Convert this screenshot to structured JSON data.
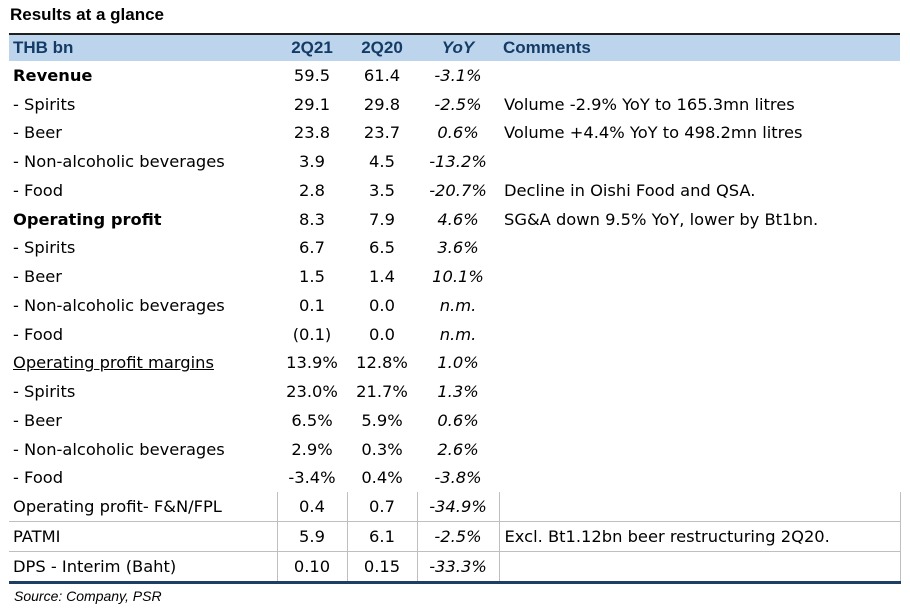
{
  "title": "Results at a glance",
  "headers": {
    "item": "THB bn",
    "c1": "2Q21",
    "c2": "2Q20",
    "c3": "YoY",
    "c4": "Comments"
  },
  "rows": [
    {
      "label": "Revenue",
      "v1": "59.5",
      "v2": "61.4",
      "yoy": "-3.1%",
      "comment": ""
    },
    {
      "label": " - Spirits",
      "v1": "29.1",
      "v2": "29.8",
      "yoy": "-2.5%",
      "comment": "Volume -2.9% YoY to 165.3mn litres"
    },
    {
      "label": " - Beer",
      "v1": "23.8",
      "v2": "23.7",
      "yoy": "0.6%",
      "comment": "Volume +4.4% YoY to 498.2mn litres"
    },
    {
      "label": " - Non-alcoholic beverages",
      "v1": "3.9",
      "v2": "4.5",
      "yoy": "-13.2%",
      "comment": ""
    },
    {
      "label": " - Food",
      "v1": "2.8",
      "v2": "3.5",
      "yoy": "-20.7%",
      "comment": "Decline in Oishi Food and QSA."
    },
    {
      "label": "Operating profit",
      "v1": "8.3",
      "v2": "7.9",
      "yoy": "4.6%",
      "comment": "SG&A down 9.5% YoY, lower by Bt1bn."
    },
    {
      "label": " - Spirits",
      "v1": "6.7",
      "v2": "6.5",
      "yoy": "3.6%",
      "comment": ""
    },
    {
      "label": " - Beer",
      "v1": "1.5",
      "v2": "1.4",
      "yoy": "10.1%",
      "comment": ""
    },
    {
      "label": " - Non-alcoholic beverages",
      "v1": "0.1",
      "v2": "0.0",
      "yoy": "n.m.",
      "comment": ""
    },
    {
      "label": " - Food",
      "v1": "(0.1)",
      "v2": "0.0",
      "yoy": "n.m.",
      "comment": ""
    },
    {
      "label": "Operating profit margins",
      "v1": "13.9%",
      "v2": "12.8%",
      "yoy": "1.0%",
      "comment": ""
    },
    {
      "label": " - Spirits",
      "v1": "23.0%",
      "v2": "21.7%",
      "yoy": "1.3%",
      "comment": ""
    },
    {
      "label": " - Beer",
      "v1": "6.5%",
      "v2": "5.9%",
      "yoy": "0.6%",
      "comment": ""
    },
    {
      "label": " - Non-alcoholic beverages",
      "v1": "2.9%",
      "v2": "0.3%",
      "yoy": "2.6%",
      "comment": ""
    },
    {
      "label": " - Food",
      "v1": "-3.4%",
      "v2": "0.4%",
      "yoy": "-3.8%",
      "comment": ""
    },
    {
      "label": "Operating profit- F&N/FPL",
      "v1": "0.4",
      "v2": "0.7",
      "yoy": "-34.9%",
      "comment": ""
    },
    {
      "label": "PATMI",
      "v1": "5.9",
      "v2": "6.1",
      "yoy": "-2.5%",
      "comment": "Excl. Bt1.12bn beer restructuring 2Q20."
    },
    {
      "label": "DPS - Interim (Baht)",
      "v1": "0.10",
      "v2": "0.15",
      "yoy": "-33.3%",
      "comment": ""
    }
  ],
  "source": "Source: Company, PSR"
}
